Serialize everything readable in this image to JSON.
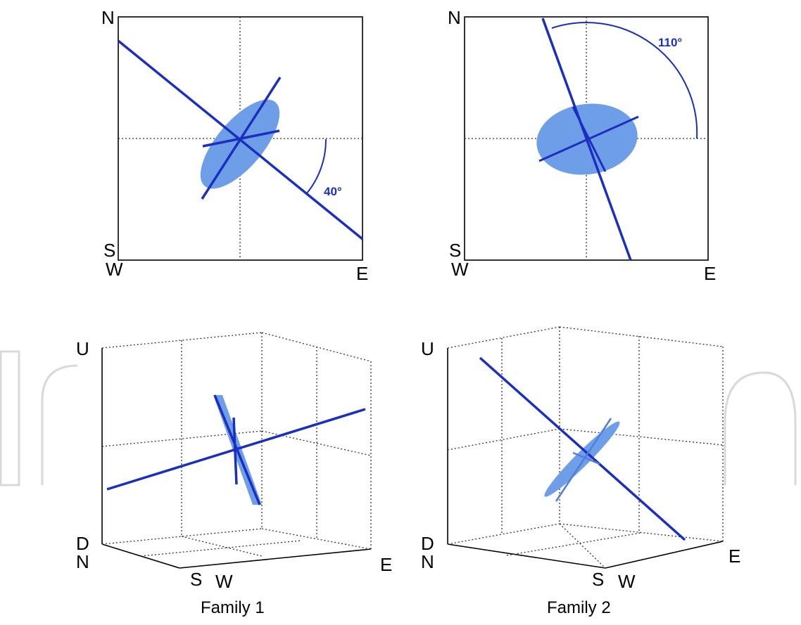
{
  "colors": {
    "line": "#1a2fbf",
    "ellipse": "#6f9ee8",
    "frame": "#000000",
    "grid": "#333333"
  },
  "panel_top_left": {
    "north": "N",
    "south": "S",
    "west": "W",
    "east": "E",
    "angle": "40°"
  },
  "panel_top_right": {
    "north": "N",
    "south": "S",
    "west": "W",
    "east": "E",
    "angle": "110°"
  },
  "panel_bottom_left": {
    "up": "U",
    "down": "D",
    "north": "N",
    "south": "S",
    "west": "W",
    "east": "E",
    "caption": "Family 1"
  },
  "panel_bottom_right": {
    "up": "U",
    "down": "D",
    "north": "N",
    "south": "S",
    "west": "W",
    "east": "E",
    "caption": "Family 2"
  }
}
